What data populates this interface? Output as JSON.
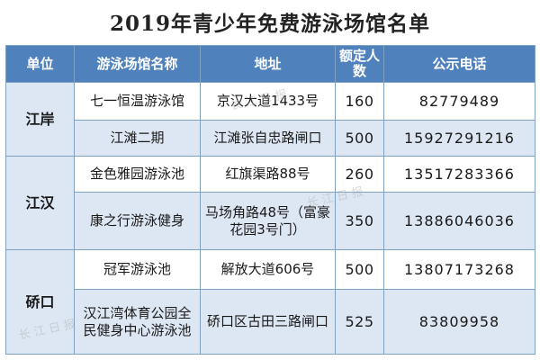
{
  "title": "2019年青少年免费游泳场馆名单",
  "header": {
    "unit": "单位",
    "venue": "游泳场馆名称",
    "address": "地址",
    "quota": "额定人数",
    "phone": "公示电话"
  },
  "groups": [
    {
      "unit": "江岸",
      "rows": [
        {
          "venue": "七一恒温游泳馆",
          "address": "京汉大道1433号",
          "quota": "160",
          "phone": "82779489"
        },
        {
          "venue": "江滩二期",
          "address": "江滩张自忠路闸口",
          "quota": "500",
          "phone": "15927291216"
        }
      ]
    },
    {
      "unit": "江汉",
      "rows": [
        {
          "venue": "金色雅园游泳池",
          "address": "红旗渠路88号",
          "quota": "260",
          "phone": "13517283366"
        },
        {
          "venue": "康之行游泳健身",
          "address": "马场角路48号（富豪花园3号门）",
          "quota": "350",
          "phone": "13886046036"
        }
      ]
    },
    {
      "unit": "硚口",
      "rows": [
        {
          "venue": "冠军游泳池",
          "address": "解放大道606号",
          "quota": "500",
          "phone": "13807173268"
        },
        {
          "venue": "汉江湾体育公园全民健身中心游泳池",
          "address": "硚口区古田三路闸口",
          "quota": "525",
          "phone": "83809958"
        }
      ]
    }
  ],
  "colors": {
    "header_bg": "#4f81bd",
    "row_alt_bg": "#dde7f3",
    "border": "#7fa1c2"
  },
  "watermark_text": "长江日报"
}
